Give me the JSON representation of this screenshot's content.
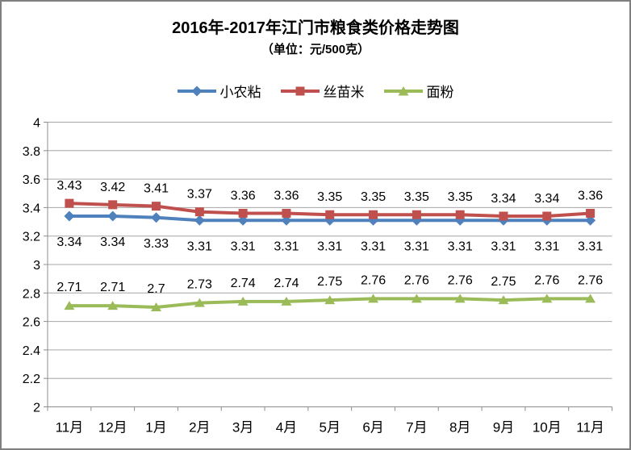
{
  "page": {
    "border_color": "#7f7f7f",
    "background": "#ffffff"
  },
  "chart_data": {
    "type": "line",
    "title": "2016年-2017年江门市粮食类价格走势图",
    "subtitle": "（单位：元/500克）",
    "categories": [
      "11月",
      "12月",
      "1月",
      "2月",
      "3月",
      "4月",
      "5月",
      "6月",
      "7月",
      "8月",
      "9月",
      "10月",
      "11月"
    ],
    "series": [
      {
        "name": "小农粘",
        "color": "#4F81BD",
        "marker": "diamond",
        "label_position": "below",
        "values": [
          3.34,
          3.34,
          3.33,
          3.31,
          3.31,
          3.31,
          3.31,
          3.31,
          3.31,
          3.31,
          3.31,
          3.31,
          3.31
        ]
      },
      {
        "name": "丝苗米",
        "color": "#C0504D",
        "marker": "square",
        "label_position": "above",
        "values": [
          3.43,
          3.42,
          3.41,
          3.37,
          3.36,
          3.36,
          3.35,
          3.35,
          3.35,
          3.35,
          3.34,
          3.34,
          3.36
        ]
      },
      {
        "name": "面粉",
        "color": "#9BBB59",
        "marker": "triangle",
        "label_position": "above",
        "values": [
          2.71,
          2.71,
          2.7,
          2.73,
          2.74,
          2.74,
          2.75,
          2.76,
          2.76,
          2.76,
          2.75,
          2.76,
          2.76
        ]
      }
    ],
    "xlabel": "",
    "ylabel": "",
    "ylim": [
      2,
      4
    ],
    "ytick_step": 0.2,
    "grid": true,
    "legend_position": "top",
    "axis_color": "#8c8c8c",
    "grid_color": "#a6a6a6",
    "label_color": "#000000"
  }
}
